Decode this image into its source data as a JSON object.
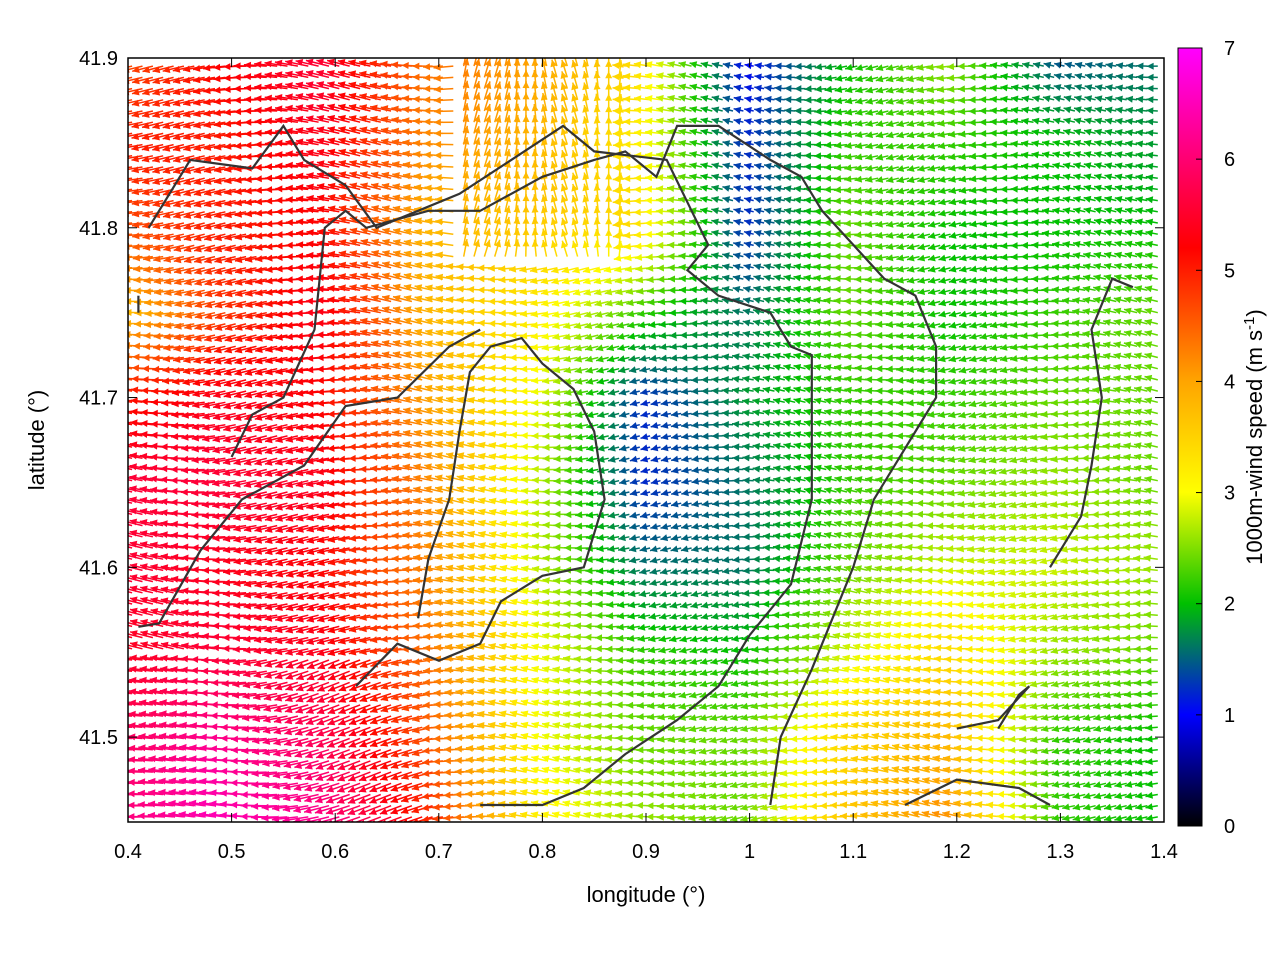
{
  "chart_data": {
    "type": "vector-field",
    "xlabel": "longitude (°)",
    "ylabel": "latitude (°)",
    "xlim": [
      0.4,
      1.4
    ],
    "ylim": [
      41.45,
      41.9
    ],
    "xticks": [
      0.4,
      0.5,
      0.6,
      0.7,
      0.8,
      0.9,
      1.0,
      1.1,
      1.2,
      1.3,
      1.4
    ],
    "xtick_labels": [
      "0.4",
      "0.5",
      "0.6",
      "0.7",
      "0.8",
      "0.9",
      "1",
      "1.1",
      "1.2",
      "1.3",
      "1.4"
    ],
    "yticks": [
      41.5,
      41.6,
      41.7,
      41.8,
      41.9
    ],
    "ytick_labels": [
      "41.5",
      "41.6",
      "41.7",
      "41.8",
      "41.9"
    ],
    "colorbar": {
      "label_main": "1000m-wind speed (m s",
      "label_sup": "-1",
      "label_close": ")",
      "range": [
        0,
        7
      ],
      "ticks": [
        "0",
        "1",
        "2",
        "3",
        "4",
        "5",
        "6",
        "7"
      ],
      "palette": [
        "#000000",
        "#0000ff",
        "#00c000",
        "#ffff00",
        "#ffa500",
        "#ff0000",
        "#ff00ff"
      ]
    },
    "field_description": "Wind vectors pointing mostly west/southwest; speeds 4–6 m/s in the west (red/orange), 3–4 in the central band (yellow), 1–2 in the east-centre (green/blue).",
    "speed_grid": {
      "x": [
        0.4,
        0.5,
        0.6,
        0.7,
        0.8,
        0.9,
        1.0,
        1.1,
        1.2,
        1.3,
        1.4
      ],
      "y": [
        41.45,
        41.5,
        41.55,
        41.6,
        41.65,
        41.7,
        41.75,
        41.8,
        41.85,
        41.9
      ],
      "values": [
        [
          6.0,
          6.5,
          6.2,
          5.0,
          3.2,
          2.6,
          2.4,
          3.6,
          4.2,
          2.2,
          2.0
        ],
        [
          5.8,
          6.2,
          5.8,
          4.6,
          3.0,
          2.4,
          2.4,
          3.4,
          3.8,
          2.2,
          2.0
        ],
        [
          5.4,
          5.6,
          5.4,
          4.4,
          3.0,
          2.2,
          2.0,
          2.8,
          3.4,
          2.6,
          2.4
        ],
        [
          5.6,
          5.4,
          5.2,
          4.2,
          2.8,
          1.6,
          1.6,
          2.4,
          2.8,
          2.8,
          2.6
        ],
        [
          5.6,
          5.6,
          5.4,
          4.2,
          2.8,
          1.2,
          1.6,
          2.2,
          2.4,
          2.6,
          2.4
        ],
        [
          5.0,
          5.4,
          5.2,
          4.0,
          3.0,
          1.2,
          1.8,
          2.2,
          2.2,
          2.4,
          2.4
        ],
        [
          3.6,
          4.8,
          5.4,
          3.8,
          3.2,
          2.2,
          1.6,
          2.4,
          2.0,
          2.2,
          2.4
        ],
        [
          4.6,
          5.0,
          5.2,
          3.8,
          3.6,
          3.4,
          1.2,
          2.4,
          2.0,
          2.0,
          2.0
        ],
        [
          5.0,
          5.0,
          5.4,
          4.2,
          3.8,
          3.2,
          1.2,
          2.2,
          2.2,
          2.0,
          1.8
        ],
        [
          4.6,
          5.2,
          5.6,
          4.4,
          4.0,
          3.4,
          1.0,
          2.0,
          2.6,
          1.4,
          1.6
        ]
      ]
    },
    "contours": [
      [
        [
          0.41,
          41.565
        ],
        [
          0.43,
          41.567
        ],
        [
          0.47,
          41.61
        ],
        [
          0.51,
          41.64
        ],
        [
          0.57,
          41.66
        ],
        [
          0.61,
          41.695
        ],
        [
          0.66,
          41.7
        ],
        [
          0.71,
          41.73
        ],
        [
          0.74,
          41.74
        ]
      ],
      [
        [
          0.42,
          41.8
        ],
        [
          0.46,
          41.84
        ],
        [
          0.52,
          41.835
        ],
        [
          0.55,
          41.86
        ],
        [
          0.57,
          41.84
        ],
        [
          0.61,
          41.825
        ],
        [
          0.64,
          41.8
        ],
        [
          0.68,
          41.81
        ],
        [
          0.72,
          41.82
        ],
        [
          0.77,
          41.84
        ],
        [
          0.82,
          41.86
        ],
        [
          0.85,
          41.845
        ],
        [
          0.92,
          41.84
        ],
        [
          0.96,
          41.79
        ],
        [
          0.94,
          41.775
        ],
        [
          0.97,
          41.76
        ],
        [
          1.02,
          41.75
        ],
        [
          1.04,
          41.73
        ],
        [
          1.06,
          41.725
        ],
        [
          1.06,
          41.64
        ],
        [
          1.04,
          41.59
        ],
        [
          1.0,
          41.56
        ],
        [
          0.97,
          41.53
        ],
        [
          0.93,
          41.51
        ],
        [
          0.88,
          41.49
        ],
        [
          0.84,
          41.47
        ],
        [
          0.8,
          41.46
        ],
        [
          0.74,
          41.46
        ]
      ],
      [
        [
          0.5,
          41.665
        ],
        [
          0.52,
          41.69
        ],
        [
          0.55,
          41.7
        ],
        [
          0.58,
          41.74
        ],
        [
          0.59,
          41.8
        ],
        [
          0.61,
          41.81
        ],
        [
          0.63,
          41.8
        ],
        [
          0.69,
          41.81
        ],
        [
          0.74,
          41.81
        ],
        [
          0.8,
          41.83
        ],
        [
          0.85,
          41.84
        ],
        [
          0.88,
          41.845
        ],
        [
          0.91,
          41.83
        ],
        [
          0.93,
          41.86
        ],
        [
          0.97,
          41.86
        ],
        [
          1.02,
          41.84
        ],
        [
          1.05,
          41.83
        ],
        [
          1.07,
          41.81
        ],
        [
          1.1,
          41.79
        ],
        [
          1.13,
          41.77
        ],
        [
          1.16,
          41.76
        ],
        [
          1.18,
          41.73
        ],
        [
          1.18,
          41.7
        ],
        [
          1.16,
          41.68
        ],
        [
          1.12,
          41.64
        ],
        [
          1.1,
          41.6
        ],
        [
          1.08,
          41.57
        ],
        [
          1.06,
          41.54
        ],
        [
          1.03,
          41.5
        ],
        [
          1.02,
          41.46
        ]
      ],
      [
        [
          0.62,
          41.53
        ],
        [
          0.66,
          41.555
        ],
        [
          0.7,
          41.545
        ],
        [
          0.74,
          41.555
        ],
        [
          0.76,
          41.58
        ],
        [
          0.8,
          41.595
        ],
        [
          0.84,
          41.6
        ],
        [
          0.86,
          41.64
        ],
        [
          0.85,
          41.68
        ],
        [
          0.83,
          41.705
        ],
        [
          0.8,
          41.72
        ],
        [
          0.78,
          41.735
        ],
        [
          0.75,
          41.73
        ],
        [
          0.73,
          41.715
        ],
        [
          0.72,
          41.68
        ],
        [
          0.71,
          41.64
        ],
        [
          0.69,
          41.605
        ],
        [
          0.68,
          41.57
        ]
      ],
      [
        [
          1.15,
          41.46
        ],
        [
          1.2,
          41.475
        ],
        [
          1.26,
          41.47
        ],
        [
          1.29,
          41.46
        ]
      ],
      [
        [
          1.2,
          41.505
        ],
        [
          1.24,
          41.51
        ],
        [
          1.27,
          41.53
        ],
        [
          1.26,
          41.525
        ],
        [
          1.24,
          41.505
        ]
      ],
      [
        [
          1.29,
          41.6
        ],
        [
          1.32,
          41.63
        ],
        [
          1.33,
          41.66
        ],
        [
          1.34,
          41.7
        ],
        [
          1.33,
          41.74
        ],
        [
          1.35,
          41.77
        ],
        [
          1.37,
          41.765
        ]
      ],
      [
        [
          0.41,
          41.76
        ],
        [
          0.41,
          41.75
        ]
      ]
    ]
  }
}
